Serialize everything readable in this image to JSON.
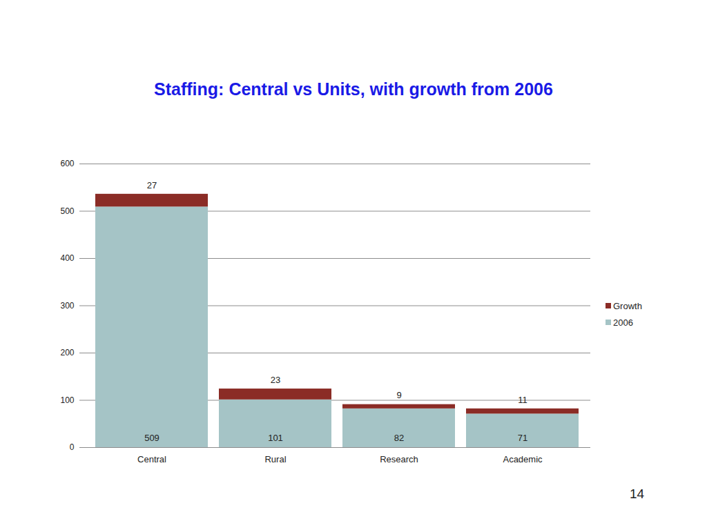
{
  "chart_data": {
    "type": "bar",
    "title": "Staffing: Central vs Units, with growth from 2006",
    "categories": [
      "Central",
      "Rural",
      "Research",
      "Academic"
    ],
    "series": [
      {
        "name": "2006",
        "color": "#a5c4c6",
        "values": [
          509,
          101,
          82,
          71
        ]
      },
      {
        "name": "Growth",
        "color": "#8b2c26",
        "values": [
          27,
          23,
          9,
          11
        ]
      }
    ],
    "stacked": true,
    "data_labels": true,
    "ylim": [
      0,
      600
    ],
    "yticks": [
      0,
      100,
      200,
      300,
      400,
      500,
      600
    ],
    "grid": true,
    "legend": "right",
    "annotations": [
      "14"
    ]
  }
}
